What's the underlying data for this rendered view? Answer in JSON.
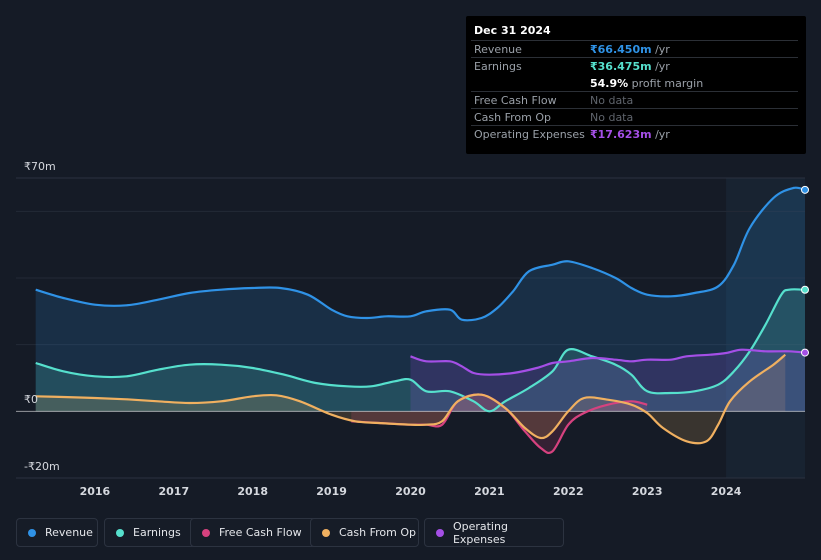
{
  "chart_data": {
    "type": "area",
    "title": "",
    "y_tick_labels": [
      "₹70m",
      "₹0",
      "-₹20m"
    ],
    "ylim": [
      -20,
      70
    ],
    "x_ticks": [
      2016,
      2017,
      2018,
      2019,
      2020,
      2021,
      2022,
      2023,
      2024
    ],
    "x_range": [
      2015.25,
      2025.0
    ],
    "forecast_start": 2024.0,
    "series": [
      {
        "name": "Revenue",
        "color": "#2f92e6",
        "x": [
          2015.25,
          2015.6,
          2016.0,
          2016.4,
          2016.8,
          2017.2,
          2017.6,
          2018.0,
          2018.35,
          2018.7,
          2019.0,
          2019.2,
          2019.45,
          2019.7,
          2020.0,
          2020.2,
          2020.5,
          2020.65,
          2020.9,
          2021.1,
          2021.3,
          2021.5,
          2021.8,
          2022.0,
          2022.3,
          2022.6,
          2022.8,
          2023.0,
          2023.3,
          2023.6,
          2023.9,
          2024.1,
          2024.3,
          2024.6,
          2024.85,
          2025.0
        ],
        "values": [
          36.5,
          34,
          32,
          31.8,
          33.5,
          35.5,
          36.5,
          37,
          37,
          35,
          30.5,
          28.5,
          28,
          28.5,
          28.5,
          30,
          30.5,
          27.5,
          28,
          31,
          36,
          42,
          44,
          45,
          43,
          40,
          37,
          35,
          34.5,
          35.5,
          37.5,
          44,
          55,
          64,
          67,
          66.45
        ]
      },
      {
        "name": "Earnings",
        "color": "#56e0cd",
        "x": [
          2015.25,
          2015.6,
          2016.0,
          2016.4,
          2016.8,
          2017.2,
          2017.6,
          2018.0,
          2018.4,
          2018.8,
          2019.2,
          2019.5,
          2019.8,
          2020.0,
          2020.2,
          2020.5,
          2020.8,
          2021.0,
          2021.2,
          2021.5,
          2021.8,
          2022.0,
          2022.3,
          2022.6,
          2022.8,
          2023.0,
          2023.3,
          2023.6,
          2023.9,
          2024.1,
          2024.3,
          2024.5,
          2024.7,
          2024.8,
          2025.0
        ],
        "values": [
          14.5,
          12,
          10.5,
          10.5,
          12.5,
          14,
          14,
          13,
          11,
          8.5,
          7.5,
          7.5,
          9,
          9.5,
          6,
          6,
          3,
          0,
          3,
          7,
          12,
          18.5,
          16.5,
          14,
          11,
          6,
          5.5,
          6,
          8,
          12,
          18,
          26,
          35,
          36.5,
          36.475
        ]
      },
      {
        "name": "Free Cash Flow",
        "color": "#d6427f",
        "x": [
          2019.25,
          2019.6,
          2020.0,
          2020.2,
          2020.4,
          2020.6,
          2020.9,
          2021.2,
          2021.45,
          2021.65,
          2021.8,
          2022.0,
          2022.2,
          2022.5,
          2022.8,
          2023.0
        ],
        "values": [
          -3,
          -3.5,
          -4,
          -4,
          -4,
          3,
          5,
          1,
          -6,
          -11,
          -12,
          -4,
          -0.5,
          2,
          3,
          2
        ]
      },
      {
        "name": "Cash From Op",
        "color": "#f0b060",
        "x": [
          2015.25,
          2015.6,
          2016.0,
          2016.4,
          2016.8,
          2017.2,
          2017.6,
          2018.0,
          2018.3,
          2018.6,
          2019.0,
          2019.3,
          2019.6,
          2020.0,
          2020.2,
          2020.4,
          2020.6,
          2020.9,
          2021.2,
          2021.45,
          2021.65,
          2021.8,
          2022.0,
          2022.2,
          2022.5,
          2022.8,
          2023.0,
          2023.2,
          2023.5,
          2023.75,
          2023.9,
          2024.05,
          2024.3,
          2024.6,
          2024.75
        ],
        "values": [
          4.5,
          4.3,
          4,
          3.6,
          3,
          2.5,
          3,
          4.5,
          4.8,
          3,
          -1,
          -3,
          -3.5,
          -4,
          -4,
          -3,
          3,
          5,
          1,
          -5,
          -8,
          -6,
          0,
          4,
          3.5,
          2,
          -0.5,
          -5,
          -9,
          -9,
          -4,
          3,
          9,
          14,
          17
        ]
      },
      {
        "name": "Operating Expenses",
        "color": "#a44fe6",
        "x": [
          2020.0,
          2020.2,
          2020.5,
          2020.65,
          2020.8,
          2021.0,
          2021.3,
          2021.6,
          2021.8,
          2022.0,
          2022.3,
          2022.6,
          2022.8,
          2023.0,
          2023.3,
          2023.5,
          2023.8,
          2024.0,
          2024.2,
          2024.5,
          2024.8,
          2025.0
        ],
        "values": [
          16.5,
          15,
          15,
          13.5,
          11.5,
          11,
          11.5,
          13,
          14.5,
          15,
          16,
          15.5,
          15,
          15.5,
          15.5,
          16.5,
          17,
          17.5,
          18.5,
          18,
          18,
          17.623
        ]
      }
    ]
  },
  "tooltip": {
    "date": "Dec 31 2024",
    "rows": [
      {
        "label": "Revenue",
        "value": "₹66.450m",
        "unit": " /yr",
        "color": "#2f92e6"
      },
      {
        "label": "Earnings",
        "value": "₹36.475m",
        "unit": " /yr",
        "color": "#56e0cd"
      },
      {
        "label": "Free Cash Flow",
        "value": "No data"
      },
      {
        "label": "Cash From Op",
        "value": "No data"
      },
      {
        "label": "Operating Expenses",
        "value": "₹17.623m",
        "unit": " /yr",
        "color": "#a44fe6"
      }
    ],
    "profit_margin_value": "54.9%",
    "profit_margin_label": " profit margin"
  },
  "legend": [
    {
      "label": "Revenue",
      "color": "#2f92e6"
    },
    {
      "label": "Earnings",
      "color": "#56e0cd"
    },
    {
      "label": "Free Cash Flow",
      "color": "#d6427f"
    },
    {
      "label": "Cash From Op",
      "color": "#f0b060"
    },
    {
      "label": "Operating Expenses",
      "color": "#a44fe6"
    }
  ]
}
